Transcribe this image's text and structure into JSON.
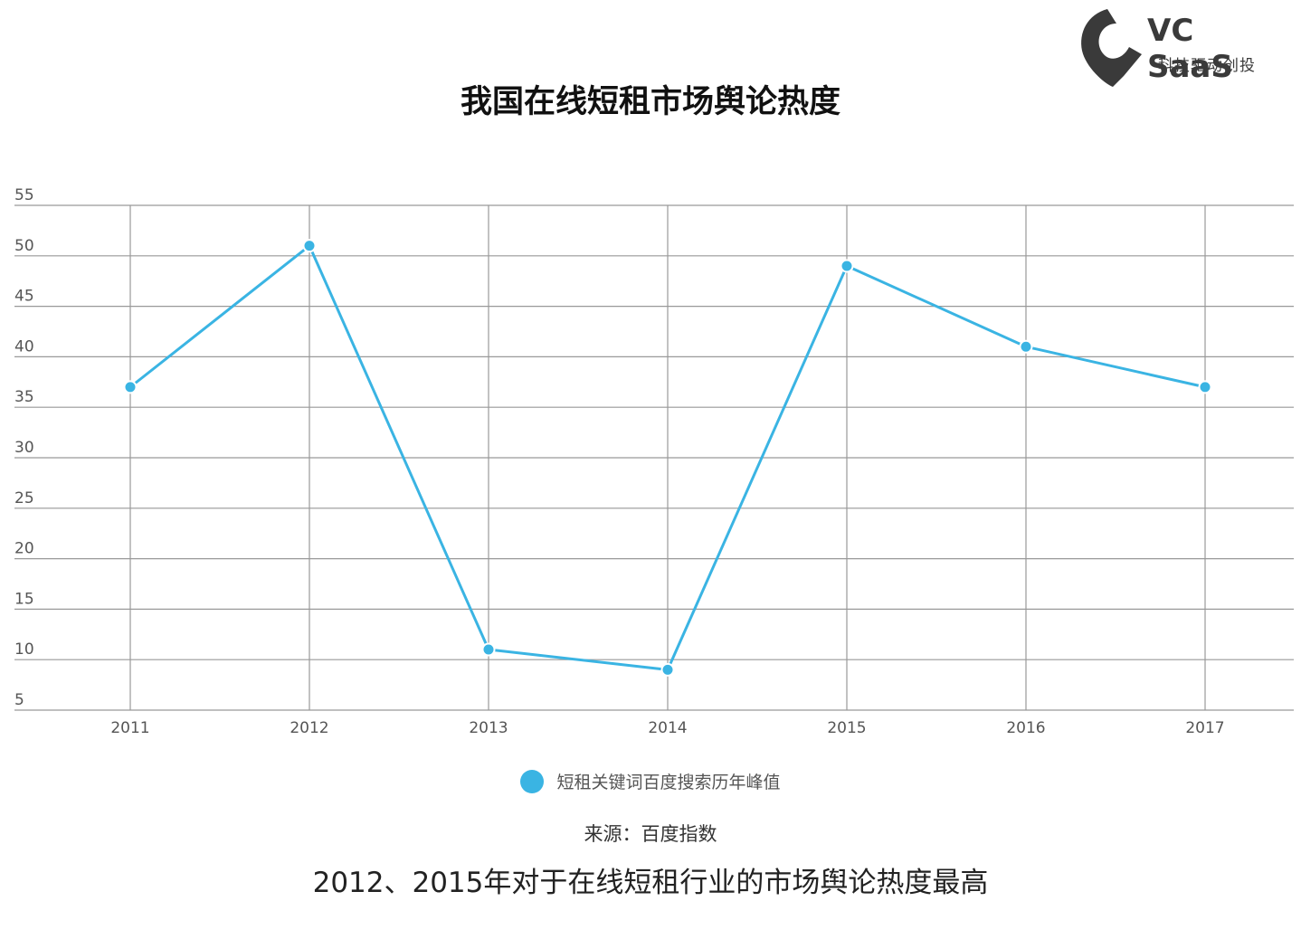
{
  "brand": {
    "name": "VC SaaS",
    "tagline": "科技驱动创投",
    "icon": "pin-logo-icon",
    "color": "#3a3a3a"
  },
  "title": "我国在线短租市场舆论热度",
  "legend_label": "短租关键词百度搜索历年峰值",
  "source": "来源：百度指数",
  "caption": "2012、2015年对于在线短租行业的市场舆论热度最高",
  "colors": {
    "series": "#3ab4e3",
    "grid": "#999999"
  },
  "chart_data": {
    "type": "line",
    "title": "我国在线短租市场舆论热度",
    "xlabel": "",
    "ylabel": "",
    "categories": [
      "2011",
      "2012",
      "2013",
      "2014",
      "2015",
      "2016",
      "2017"
    ],
    "series": [
      {
        "name": "短租关键词百度搜索历年峰值",
        "values": [
          37,
          51,
          11,
          9,
          49,
          41,
          37
        ]
      }
    ],
    "ylim": [
      5,
      55
    ],
    "yticks": [
      5,
      10,
      15,
      20,
      25,
      30,
      35,
      40,
      45,
      50,
      55
    ],
    "grid": true,
    "legend": "bottom-center"
  }
}
